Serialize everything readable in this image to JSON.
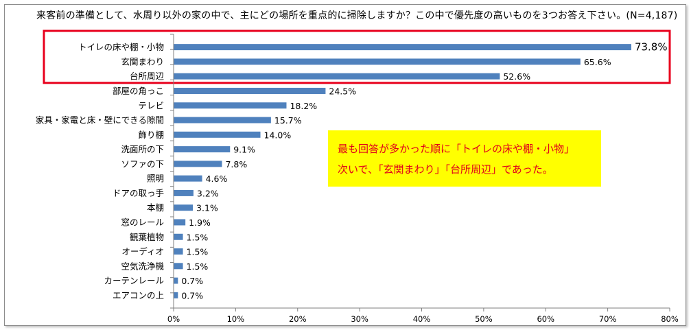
{
  "chart_data": {
    "type": "bar",
    "orientation": "horizontal",
    "title": "来客前の準備として、水周り以外の家の中で、主にどの場所を重点的に掃除しますか？この中で優先度の高いものを3つお答え下さい。(N=4,187)",
    "categories": [
      "トイレの床や棚・小物",
      "玄関まわり",
      "台所周辺",
      "部屋の角っこ",
      "テレビ",
      "家具・家電と床・壁にできる隙間",
      "飾り棚",
      "洗面所の下",
      "ソファの下",
      "照明",
      "ドアの取っ手",
      "本棚",
      "窓のレール",
      "観葉植物",
      "オーディオ",
      "空気洗浄機",
      "カーテンレール",
      "エアコンの上"
    ],
    "values": [
      73.8,
      65.6,
      52.6,
      24.5,
      18.2,
      15.7,
      14.0,
      9.1,
      7.8,
      4.6,
      3.2,
      3.1,
      1.9,
      1.5,
      1.5,
      1.5,
      0.7,
      0.7
    ],
    "value_labels": [
      "73.8%",
      "65.6%",
      "52.6%",
      "24.5%",
      "18.2%",
      "15.7%",
      "14.0%",
      "9.1%",
      "7.8%",
      "4.6%",
      "3.2%",
      "3.1%",
      "1.9%",
      "1.5%",
      "1.5%",
      "1.5%",
      "0.7%",
      "0.7%"
    ],
    "x_ticks": [
      "0%",
      "10%",
      "20%",
      "30%",
      "40%",
      "50%",
      "60%",
      "70%",
      "80%"
    ],
    "xlim": [
      0,
      80
    ],
    "grid": false,
    "bar_color": "#4f81bd",
    "highlight_color": "#e8001c",
    "highlight_top_n": 3
  },
  "annotation": {
    "line1": "最も回答が多かった順に「トイレの床や棚・小物」",
    "line2": "次いで、「玄関まわり」「台所周辺」であった。",
    "background": "#ffff00",
    "text_color": "#e0001b"
  }
}
